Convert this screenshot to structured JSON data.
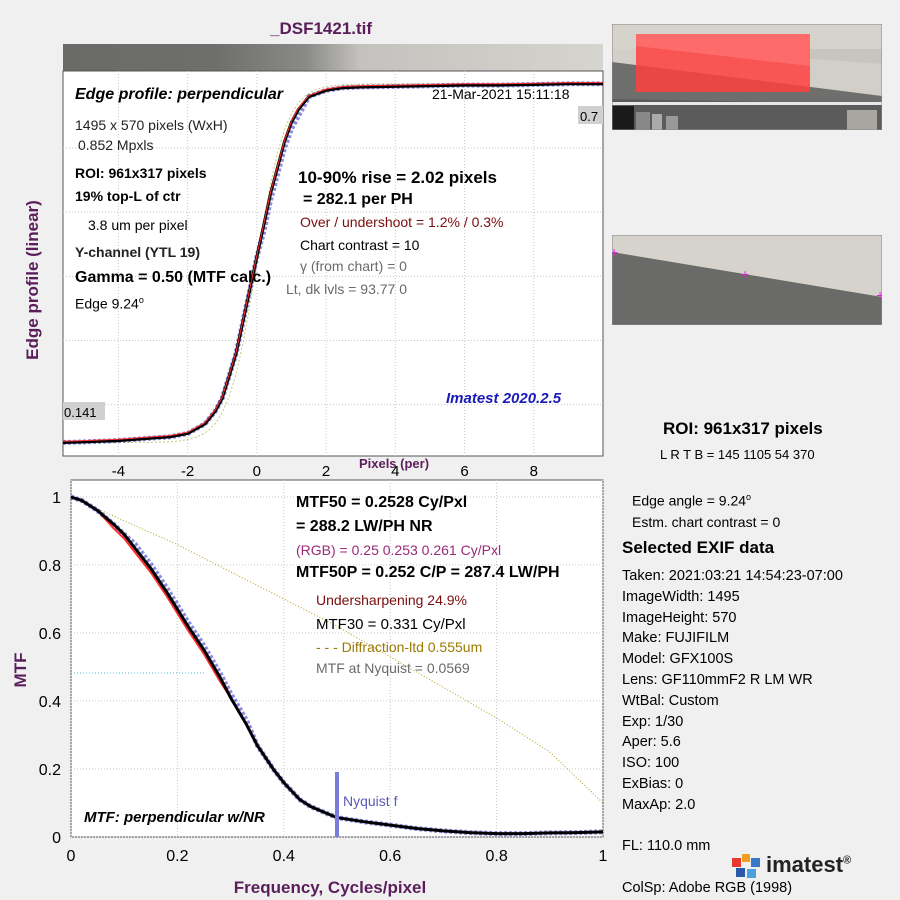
{
  "file_title": "_DSF1421.tif",
  "edge_panel": {
    "title": "Edge profile: perpendicular",
    "timestamp": "21-Mar-2021 15:11:18",
    "image_size": "1495 x 570 pixels (WxH)",
    "mpxls": "0.852 Mpxls",
    "roi": "ROI:  961x317 pixels",
    "location": "19% top-L of ctr",
    "um_per_pixel": "3.8 um per pixel",
    "channel": "Y-channel  (YTL 19)",
    "gamma": "Gamma = 0.50 (MTF calc.)",
    "edge_prefix": "Edge   9.24",
    "edge_deg": "o",
    "rise": "10-90% rise = 2.02 pixels",
    "per_ph": "=  282.1 per PH",
    "overshoot": "Over / undershoot =  1.2% /  0.3%",
    "chart_contrast": "Chart contrast = 10",
    "gamma_chart": "γ (from chart) =    0",
    "lt_dk": "Lt, dk lvls = 93.77  0",
    "version": "Imatest 2020.2.5",
    "top_value": "0.7",
    "bottom_value": "0.141"
  },
  "mtf_panel": {
    "mtf50": "MTF50 = 0.2528 Cy/Pxl",
    "lwph": "= 288.2 LW/PH  NR",
    "rgb": "(RGB) = 0.25  0.253  0.261 Cy/Pxl",
    "mtf50p": "MTF50P = 0.252 C/P = 287.4 LW/PH",
    "undersharpening": "Undersharpening 24.9%",
    "mtf30": "MTF30 = 0.331 Cy/Pxl",
    "diffraction": "- - - Diffraction-ltd  0.555um",
    "mtf_nyquist": "MTF at Nyquist = 0.0569",
    "nyquist_label": "Nyquist f",
    "caption": "MTF: perpendicular w/NR"
  },
  "side": {
    "roi": "ROI:  961x317 pixels",
    "lrtb": "L R  T B = 145 1105  54 370",
    "edge_angle": "Edge angle = 9.24",
    "edge_angle_deg": "o",
    "estm_contrast": "Estm. chart contrast = 0",
    "exif_title": "Selected EXIF data",
    "exif": [
      "Taken: 2021:03:21 14:54:23-07:00",
      "ImageWidth:  1495",
      "ImageHeight:  570",
      "Make:  FUJIFILM",
      "Model:  GFX100S",
      "Lens:   GF110mmF2 R LM WR",
      "WtBal:  Custom",
      "Exp:    1/30",
      "Aper:   5.6",
      "ISO:    100",
      "ExBias:  0",
      "MaxAp:  2.0",
      "",
      "FL:      110.0 mm"
    ],
    "colsp": "ColSp:  Adobe RGB (1998)",
    "logo": "imatest",
    "logo_mark": "®"
  },
  "chart_data": [
    {
      "type": "line",
      "title": "Edge profile: perpendicular",
      "xlabel": "Pixels (per)",
      "ylabel": "Edge profile (linear)",
      "xlim": [
        -5.6,
        10
      ],
      "ylim": [
        0.12,
        0.72
      ],
      "xticks": [
        -4,
        -2,
        0,
        2,
        4,
        6,
        8
      ],
      "grid": true,
      "series": [
        {
          "color": "#000000",
          "x": [
            -5.6,
            -5,
            -4,
            -3,
            -2.5,
            -2,
            -1.5,
            -1.2,
            -1,
            -0.8,
            -0.6,
            -0.4,
            -0.2,
            0,
            0.2,
            0.4,
            0.6,
            0.8,
            1,
            1.2,
            1.5,
            2,
            2.5,
            3,
            4,
            5,
            6,
            7,
            8,
            9,
            10
          ],
          "y": [
            0.141,
            0.142,
            0.144,
            0.148,
            0.15,
            0.155,
            0.17,
            0.19,
            0.21,
            0.245,
            0.28,
            0.33,
            0.38,
            0.43,
            0.48,
            0.53,
            0.57,
            0.61,
            0.64,
            0.66,
            0.68,
            0.69,
            0.694,
            0.695,
            0.696,
            0.697,
            0.698,
            0.698,
            0.699,
            0.7,
            0.7
          ]
        }
      ]
    },
    {
      "type": "line",
      "xlabel": "Frequency, Cycles/pixel",
      "ylabel": "MTF",
      "xlim": [
        0,
        1
      ],
      "ylim": [
        0,
        1.05
      ],
      "xticks": [
        0,
        0.2,
        0.4,
        0.6,
        0.8,
        1
      ],
      "yticks": [
        0,
        0.2,
        0.4,
        0.6,
        0.8,
        1
      ],
      "grid": true,
      "nyquist": 0.5,
      "series": [
        {
          "color": "#000000",
          "x": [
            0,
            0.02,
            0.05,
            0.08,
            0.1,
            0.12,
            0.15,
            0.18,
            0.2,
            0.22,
            0.25,
            0.28,
            0.3,
            0.33,
            0.35,
            0.38,
            0.4,
            0.43,
            0.45,
            0.48,
            0.5,
            0.55,
            0.6,
            0.65,
            0.7,
            0.75,
            0.8,
            0.85,
            0.9,
            0.95,
            1.0
          ],
          "y": [
            1.0,
            0.99,
            0.96,
            0.92,
            0.89,
            0.85,
            0.79,
            0.72,
            0.67,
            0.62,
            0.55,
            0.47,
            0.41,
            0.33,
            0.27,
            0.2,
            0.16,
            0.11,
            0.09,
            0.07,
            0.057,
            0.045,
            0.035,
            0.025,
            0.018,
            0.013,
            0.01,
            0.01,
            0.012,
            0.013,
            0.015
          ]
        },
        {
          "color": "#a08a00",
          "x": [
            0,
            0.1,
            0.2,
            0.3,
            0.4,
            0.5,
            0.6,
            0.7,
            0.8,
            0.9,
            1.0
          ],
          "y": [
            1.0,
            0.93,
            0.86,
            0.78,
            0.7,
            0.62,
            0.53,
            0.44,
            0.35,
            0.25,
            0.1
          ]
        }
      ]
    }
  ]
}
